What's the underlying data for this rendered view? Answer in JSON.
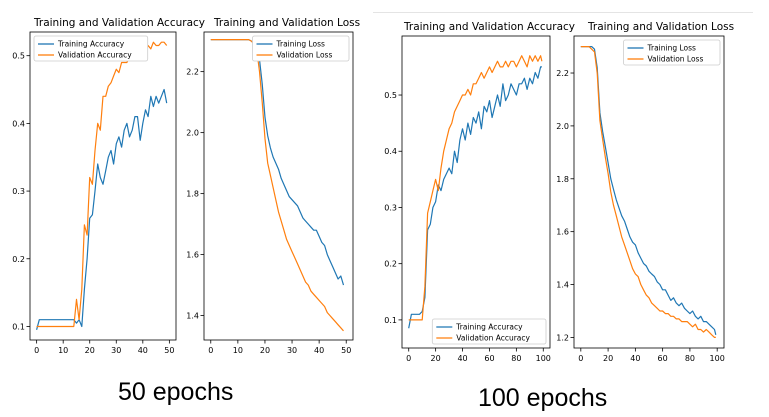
{
  "captions": {
    "left": "50 epochs",
    "right": "100 epochs"
  },
  "colors": {
    "train": "#1f77b4",
    "val": "#ff7f0e"
  },
  "chart_data": [
    {
      "type": "line",
      "title": "Training and Validation Accuracy",
      "xlim": [
        -2.5,
        52.5
      ],
      "ylim": [
        0.08,
        0.535
      ],
      "xticks": [
        0,
        10,
        20,
        30,
        40,
        50
      ],
      "yticks": [
        0.1,
        0.2,
        0.3,
        0.4,
        0.5
      ],
      "yfmt": 1,
      "legend": "upper-left",
      "series": [
        {
          "name": "Training Accuracy",
          "color": "#1f77b4",
          "x": [
            0,
            1,
            2,
            3,
            4,
            5,
            6,
            7,
            8,
            9,
            10,
            11,
            12,
            13,
            14,
            15,
            16,
            17,
            18,
            19,
            20,
            21,
            22,
            23,
            24,
            25,
            26,
            27,
            28,
            29,
            30,
            31,
            32,
            33,
            34,
            35,
            36,
            37,
            38,
            39,
            40,
            41,
            42,
            43,
            44,
            45,
            46,
            47,
            48,
            49
          ],
          "y": [
            0.095,
            0.11,
            0.11,
            0.11,
            0.11,
            0.11,
            0.11,
            0.11,
            0.11,
            0.11,
            0.11,
            0.11,
            0.11,
            0.11,
            0.11,
            0.105,
            0.11,
            0.1,
            0.155,
            0.2,
            0.26,
            0.265,
            0.3,
            0.34,
            0.32,
            0.31,
            0.33,
            0.35,
            0.36,
            0.34,
            0.37,
            0.38,
            0.365,
            0.39,
            0.4,
            0.38,
            0.39,
            0.41,
            0.41,
            0.375,
            0.4,
            0.42,
            0.41,
            0.44,
            0.425,
            0.44,
            0.43,
            0.44,
            0.45,
            0.43
          ]
        },
        {
          "name": "Validation Accuracy",
          "color": "#ff7f0e",
          "x": [
            0,
            1,
            2,
            3,
            4,
            5,
            6,
            7,
            8,
            9,
            10,
            11,
            12,
            13,
            14,
            15,
            16,
            17,
            18,
            19,
            20,
            21,
            22,
            23,
            24,
            25,
            26,
            27,
            28,
            29,
            30,
            31,
            32,
            33,
            34,
            35,
            36,
            37,
            38,
            39,
            40,
            41,
            42,
            43,
            44,
            45,
            46,
            47,
            48,
            49
          ],
          "y": [
            0.1,
            0.1,
            0.1,
            0.1,
            0.1,
            0.1,
            0.1,
            0.1,
            0.1,
            0.1,
            0.1,
            0.1,
            0.1,
            0.1,
            0.1,
            0.14,
            0.11,
            0.155,
            0.25,
            0.235,
            0.32,
            0.31,
            0.36,
            0.4,
            0.39,
            0.44,
            0.44,
            0.455,
            0.46,
            0.47,
            0.48,
            0.475,
            0.49,
            0.49,
            0.49,
            0.5,
            0.495,
            0.505,
            0.5,
            0.51,
            0.51,
            0.505,
            0.515,
            0.51,
            0.52,
            0.515,
            0.515,
            0.52,
            0.52,
            0.515
          ]
        }
      ]
    },
    {
      "type": "line",
      "title": "Training and Validation Loss",
      "xlim": [
        -2.5,
        52.5
      ],
      "ylim": [
        1.32,
        2.33
      ],
      "xticks": [
        0,
        10,
        20,
        30,
        40,
        50
      ],
      "yticks": [
        1.4,
        1.6,
        1.8,
        2.0,
        2.2
      ],
      "yfmt": 1,
      "legend": "upper-right",
      "series": [
        {
          "name": "Training Loss",
          "color": "#1f77b4",
          "x": [
            0,
            1,
            2,
            3,
            4,
            5,
            6,
            7,
            8,
            9,
            10,
            11,
            12,
            13,
            14,
            15,
            16,
            17,
            18,
            19,
            20,
            21,
            22,
            23,
            24,
            25,
            26,
            27,
            28,
            29,
            30,
            31,
            32,
            33,
            34,
            35,
            36,
            37,
            38,
            39,
            40,
            41,
            42,
            43,
            44,
            45,
            46,
            47,
            48,
            49
          ],
          "y": [
            2.305,
            2.305,
            2.305,
            2.305,
            2.305,
            2.305,
            2.305,
            2.305,
            2.305,
            2.305,
            2.305,
            2.305,
            2.305,
            2.305,
            2.305,
            2.3,
            2.295,
            2.28,
            2.24,
            2.16,
            2.05,
            1.99,
            1.95,
            1.92,
            1.9,
            1.88,
            1.85,
            1.83,
            1.81,
            1.79,
            1.78,
            1.77,
            1.76,
            1.74,
            1.72,
            1.71,
            1.7,
            1.69,
            1.68,
            1.68,
            1.66,
            1.64,
            1.63,
            1.6,
            1.58,
            1.56,
            1.54,
            1.52,
            1.53,
            1.5
          ]
        },
        {
          "name": "Validation Loss",
          "color": "#ff7f0e",
          "x": [
            0,
            1,
            2,
            3,
            4,
            5,
            6,
            7,
            8,
            9,
            10,
            11,
            12,
            13,
            14,
            15,
            16,
            17,
            18,
            19,
            20,
            21,
            22,
            23,
            24,
            25,
            26,
            27,
            28,
            29,
            30,
            31,
            32,
            33,
            34,
            35,
            36,
            37,
            38,
            39,
            40,
            41,
            42,
            43,
            44,
            45,
            46,
            47,
            48,
            49
          ],
          "y": [
            2.305,
            2.305,
            2.305,
            2.305,
            2.305,
            2.305,
            2.305,
            2.305,
            2.305,
            2.305,
            2.305,
            2.305,
            2.305,
            2.305,
            2.305,
            2.3,
            2.29,
            2.27,
            2.2,
            2.1,
            1.98,
            1.9,
            1.86,
            1.82,
            1.78,
            1.74,
            1.71,
            1.68,
            1.65,
            1.63,
            1.61,
            1.59,
            1.57,
            1.55,
            1.53,
            1.51,
            1.5,
            1.48,
            1.47,
            1.46,
            1.45,
            1.44,
            1.43,
            1.41,
            1.4,
            1.39,
            1.38,
            1.37,
            1.36,
            1.35
          ]
        }
      ]
    },
    {
      "type": "line",
      "title": "Training and Validation Accuracy",
      "xlim": [
        -5,
        105
      ],
      "ylim": [
        0.05,
        0.605
      ],
      "xticks": [
        0,
        20,
        40,
        60,
        80,
        100
      ],
      "yticks": [
        0.1,
        0.2,
        0.3,
        0.4,
        0.5
      ],
      "yfmt": 1,
      "legend": "lower-right",
      "series": [
        {
          "name": "Training Accuracy",
          "color": "#1f77b4",
          "x": [
            0,
            2,
            4,
            6,
            8,
            10,
            12,
            14,
            16,
            18,
            20,
            22,
            24,
            26,
            28,
            30,
            32,
            34,
            36,
            38,
            40,
            42,
            44,
            46,
            48,
            50,
            52,
            54,
            56,
            58,
            60,
            62,
            64,
            66,
            68,
            70,
            72,
            74,
            76,
            78,
            80,
            82,
            84,
            86,
            88,
            90,
            92,
            94,
            96,
            98,
            99
          ],
          "y": [
            0.085,
            0.11,
            0.11,
            0.11,
            0.11,
            0.115,
            0.14,
            0.26,
            0.27,
            0.3,
            0.31,
            0.34,
            0.33,
            0.35,
            0.36,
            0.37,
            0.36,
            0.4,
            0.38,
            0.42,
            0.44,
            0.42,
            0.45,
            0.43,
            0.46,
            0.45,
            0.47,
            0.44,
            0.48,
            0.47,
            0.49,
            0.46,
            0.48,
            0.5,
            0.48,
            0.52,
            0.49,
            0.5,
            0.52,
            0.51,
            0.5,
            0.52,
            0.52,
            0.53,
            0.51,
            0.53,
            0.52,
            0.54,
            0.53,
            0.55,
            0.55
          ]
        },
        {
          "name": "Validation Accuracy",
          "color": "#ff7f0e",
          "x": [
            0,
            2,
            4,
            6,
            8,
            10,
            12,
            14,
            16,
            18,
            20,
            22,
            24,
            26,
            28,
            30,
            32,
            34,
            36,
            38,
            40,
            42,
            44,
            46,
            48,
            50,
            52,
            54,
            56,
            58,
            60,
            62,
            64,
            66,
            68,
            70,
            72,
            74,
            76,
            78,
            80,
            82,
            84,
            86,
            88,
            90,
            92,
            94,
            96,
            98,
            99
          ],
          "y": [
            0.1,
            0.1,
            0.1,
            0.1,
            0.1,
            0.1,
            0.16,
            0.29,
            0.31,
            0.33,
            0.35,
            0.33,
            0.37,
            0.4,
            0.42,
            0.44,
            0.45,
            0.47,
            0.48,
            0.49,
            0.5,
            0.5,
            0.51,
            0.5,
            0.52,
            0.52,
            0.53,
            0.54,
            0.53,
            0.54,
            0.55,
            0.54,
            0.55,
            0.56,
            0.55,
            0.55,
            0.56,
            0.55,
            0.56,
            0.56,
            0.55,
            0.56,
            0.57,
            0.56,
            0.55,
            0.57,
            0.56,
            0.57,
            0.56,
            0.57,
            0.56
          ]
        }
      ]
    },
    {
      "type": "line",
      "title": "Training and Validation Loss",
      "xlim": [
        -5,
        105
      ],
      "ylim": [
        1.16,
        2.34
      ],
      "xticks": [
        0,
        20,
        40,
        60,
        80,
        100
      ],
      "yticks": [
        1.2,
        1.4,
        1.6,
        1.8,
        2.0,
        2.2
      ],
      "yfmt": 1,
      "legend": "upper-right",
      "series": [
        {
          "name": "Training Loss",
          "color": "#1f77b4",
          "x": [
            0,
            2,
            4,
            6,
            8,
            10,
            12,
            14,
            16,
            18,
            20,
            22,
            24,
            26,
            28,
            30,
            32,
            34,
            36,
            38,
            40,
            42,
            44,
            46,
            48,
            50,
            52,
            54,
            56,
            58,
            60,
            62,
            64,
            66,
            68,
            70,
            72,
            74,
            76,
            78,
            80,
            82,
            84,
            86,
            88,
            90,
            92,
            94,
            96,
            98,
            99
          ],
          "y": [
            2.3,
            2.3,
            2.3,
            2.3,
            2.3,
            2.29,
            2.22,
            2.05,
            1.98,
            1.92,
            1.86,
            1.8,
            1.76,
            1.72,
            1.69,
            1.66,
            1.64,
            1.61,
            1.58,
            1.56,
            1.55,
            1.52,
            1.5,
            1.48,
            1.47,
            1.45,
            1.44,
            1.43,
            1.41,
            1.4,
            1.38,
            1.38,
            1.36,
            1.34,
            1.35,
            1.33,
            1.32,
            1.33,
            1.31,
            1.3,
            1.29,
            1.3,
            1.28,
            1.27,
            1.28,
            1.26,
            1.26,
            1.25,
            1.24,
            1.23,
            1.21
          ]
        },
        {
          "name": "Validation Loss",
          "color": "#ff7f0e",
          "x": [
            0,
            2,
            4,
            6,
            8,
            10,
            12,
            14,
            16,
            18,
            20,
            22,
            24,
            26,
            28,
            30,
            32,
            34,
            36,
            38,
            40,
            42,
            44,
            46,
            48,
            50,
            52,
            54,
            56,
            58,
            60,
            62,
            64,
            66,
            68,
            70,
            72,
            74,
            76,
            78,
            80,
            82,
            84,
            86,
            88,
            90,
            92,
            94,
            96,
            98,
            99
          ],
          "y": [
            2.3,
            2.3,
            2.3,
            2.3,
            2.29,
            2.28,
            2.2,
            2.02,
            1.95,
            1.88,
            1.82,
            1.75,
            1.7,
            1.66,
            1.62,
            1.58,
            1.55,
            1.52,
            1.49,
            1.46,
            1.44,
            1.43,
            1.4,
            1.38,
            1.36,
            1.35,
            1.33,
            1.32,
            1.31,
            1.3,
            1.3,
            1.29,
            1.29,
            1.28,
            1.28,
            1.27,
            1.27,
            1.26,
            1.26,
            1.26,
            1.25,
            1.24,
            1.25,
            1.23,
            1.23,
            1.22,
            1.23,
            1.22,
            1.21,
            1.2,
            1.2
          ]
        }
      ]
    }
  ]
}
